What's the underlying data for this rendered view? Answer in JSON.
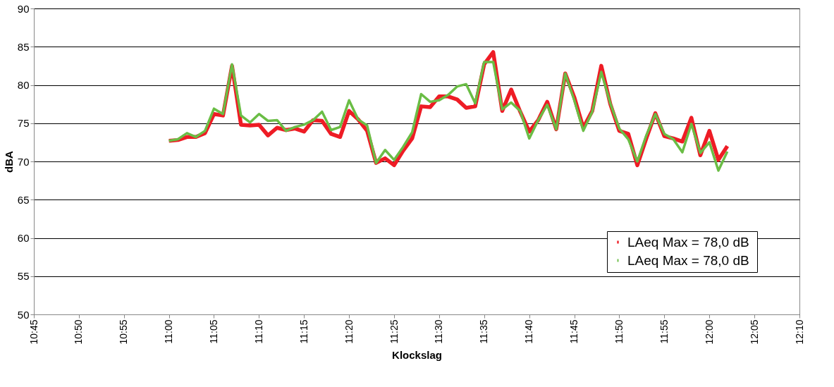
{
  "chart_data": {
    "type": "line",
    "xlabel": "Klockslag",
    "ylabel": "dBA",
    "x": [
      11.0,
      11.0167,
      11.0333,
      11.05,
      11.0667,
      11.0833,
      11.1,
      11.1167,
      11.1333,
      11.15,
      11.1667,
      11.1833,
      11.2,
      11.2167,
      11.2333,
      11.25,
      11.2667,
      11.2833,
      11.3,
      11.3167,
      11.3333,
      11.35,
      11.3667,
      11.3833,
      11.4,
      11.4167,
      11.4333,
      11.45,
      11.4667,
      11.4833,
      11.5,
      11.5167,
      11.5333,
      11.55,
      11.5667,
      11.5833,
      11.6,
      11.6167,
      11.6333,
      11.65,
      11.6667,
      11.6833,
      11.7,
      11.7167,
      11.7333,
      11.75,
      11.7667,
      11.7833,
      11.8,
      11.8167,
      11.8333,
      11.85,
      11.8667,
      11.8833,
      11.9,
      11.9167,
      11.9333,
      11.95,
      11.9667,
      11.9833,
      12.0,
      12.0167,
      12.0333
    ],
    "series": [
      {
        "name": "LAeq Max =  78,0 dB",
        "color": "#ee1c25",
        "values": [
          72.7,
          72.8,
          73.2,
          73.2,
          73.7,
          76.2,
          76.0,
          82.5,
          74.8,
          74.7,
          74.8,
          73.4,
          74.4,
          74.1,
          74.3,
          73.9,
          75.4,
          75.3,
          73.6,
          73.2,
          76.6,
          75.5,
          74.0,
          69.8,
          70.4,
          69.5,
          71.4,
          73.0,
          77.2,
          77.1,
          78.5,
          78.5,
          78.1,
          77.0,
          77.2,
          82.7,
          84.3,
          76.6,
          79.4,
          76.5,
          73.9,
          75.4,
          77.8,
          74.2,
          81.5,
          78.4,
          74.4,
          76.6,
          82.5,
          77.5,
          74.0,
          73.6,
          69.5,
          73.0,
          76.3,
          73.3,
          73.0,
          72.6,
          75.7,
          70.8,
          74.0,
          70.2,
          72.0
        ]
      },
      {
        "name": "LAeq Max =  78,0 dB",
        "color": "#6abd45",
        "values": [
          72.7,
          72.9,
          73.7,
          73.2,
          74.0,
          76.9,
          76.2,
          82.7,
          76.0,
          75.1,
          76.2,
          75.3,
          75.4,
          74.0,
          74.5,
          74.8,
          75.4,
          76.5,
          74.1,
          74.5,
          78.0,
          75.5,
          74.7,
          69.8,
          71.5,
          70.2,
          71.9,
          73.8,
          78.8,
          77.8,
          78.0,
          78.7,
          79.8,
          80.1,
          77.6,
          83.0,
          83.0,
          76.8,
          77.7,
          76.6,
          73.0,
          75.4,
          77.4,
          74.2,
          81.5,
          78.0,
          74.0,
          76.5,
          81.7,
          77.6,
          74.3,
          72.9,
          70.0,
          73.4,
          76.2,
          73.6,
          72.9,
          71.2,
          74.9,
          71.1,
          72.5,
          68.8,
          71.3
        ]
      }
    ],
    "xlim": [
      10.75,
      12.1667
    ],
    "xticks": [
      {
        "value": 10.75,
        "label": "10:45"
      },
      {
        "value": 10.8333,
        "label": "10:50"
      },
      {
        "value": 10.9167,
        "label": "10:55"
      },
      {
        "value": 11.0,
        "label": "11:00"
      },
      {
        "value": 11.0833,
        "label": "11:05"
      },
      {
        "value": 11.1667,
        "label": "11:10"
      },
      {
        "value": 11.25,
        "label": "11:15"
      },
      {
        "value": 11.3333,
        "label": "11:20"
      },
      {
        "value": 11.4167,
        "label": "11:25"
      },
      {
        "value": 11.5,
        "label": "11:30"
      },
      {
        "value": 11.5833,
        "label": "11:35"
      },
      {
        "value": 11.6667,
        "label": "11:40"
      },
      {
        "value": 11.75,
        "label": "11:45"
      },
      {
        "value": 11.8333,
        "label": "11:50"
      },
      {
        "value": 11.9167,
        "label": "11:55"
      },
      {
        "value": 12.0,
        "label": "12:00"
      },
      {
        "value": 12.0833,
        "label": "12:05"
      },
      {
        "value": 12.1667,
        "label": "12:10"
      }
    ],
    "ylim": [
      50,
      90
    ],
    "yticks": [
      50,
      55,
      60,
      65,
      70,
      75,
      80,
      85,
      90
    ],
    "grid": "y",
    "legend": "bottom right",
    "marker": "none",
    "line_style": "solid"
  }
}
